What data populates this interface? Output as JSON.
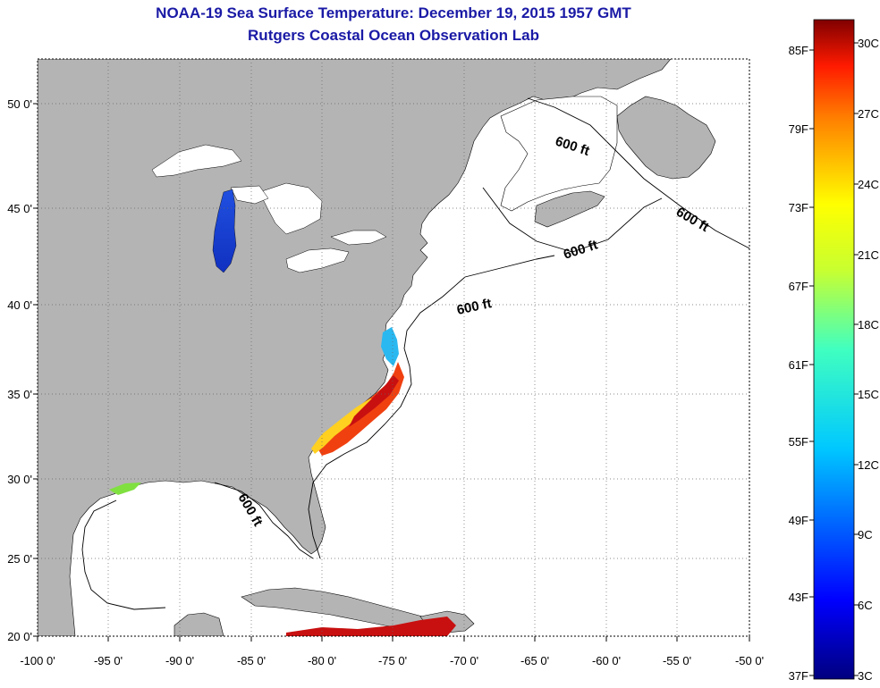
{
  "title": "NOAA-19 Sea Surface Temperature:  December 19, 2015 1957 GMT",
  "subtitle": "Rutgers Coastal Ocean Observation Lab",
  "lon_ticks": [
    "-100 0'",
    "-95 0'",
    "-90 0'",
    "-85 0'",
    "-80 0'",
    "-75 0'",
    "-70 0'",
    "-65 0'",
    "-60 0'",
    "-55 0'",
    "-50 0'"
  ],
  "lat_ticks": [
    "50 0'",
    "45 0'",
    "40 0'",
    "35 0'",
    "30 0'",
    "25 0'",
    "20 0'"
  ],
  "contour_label": "600 ft",
  "colorbar": {
    "fahrenheit": [
      "85F",
      "79F",
      "73F",
      "67F",
      "61F",
      "55F",
      "49F",
      "43F",
      "37F"
    ],
    "celsius": [
      "30C",
      "27C",
      "24C",
      "21C",
      "18C",
      "15C",
      "12C",
      "9C",
      "6C",
      "3C"
    ]
  },
  "colors": {
    "title": "#1a1aa6",
    "land": "#b4b4b4",
    "ocean": "#ffffff"
  }
}
